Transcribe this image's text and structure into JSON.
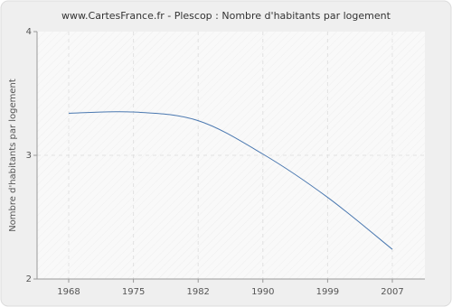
{
  "chart_data": {
    "type": "line",
    "title": "www.CartesFrance.fr - Plescop : Nombre d'habitants par logement",
    "y_label": "Nombre d'habitants par logement",
    "categories": [
      "1968",
      "1975",
      "1982",
      "1990",
      "1999",
      "2007"
    ],
    "series": [
      {
        "name": "Plescop",
        "color": "#4a78b0",
        "values": [
          3.34,
          3.35,
          3.28,
          3.01,
          2.66,
          2.24
        ]
      }
    ],
    "ylim": [
      2,
      4
    ],
    "yticks": [
      2,
      3,
      4
    ],
    "grid": true
  }
}
